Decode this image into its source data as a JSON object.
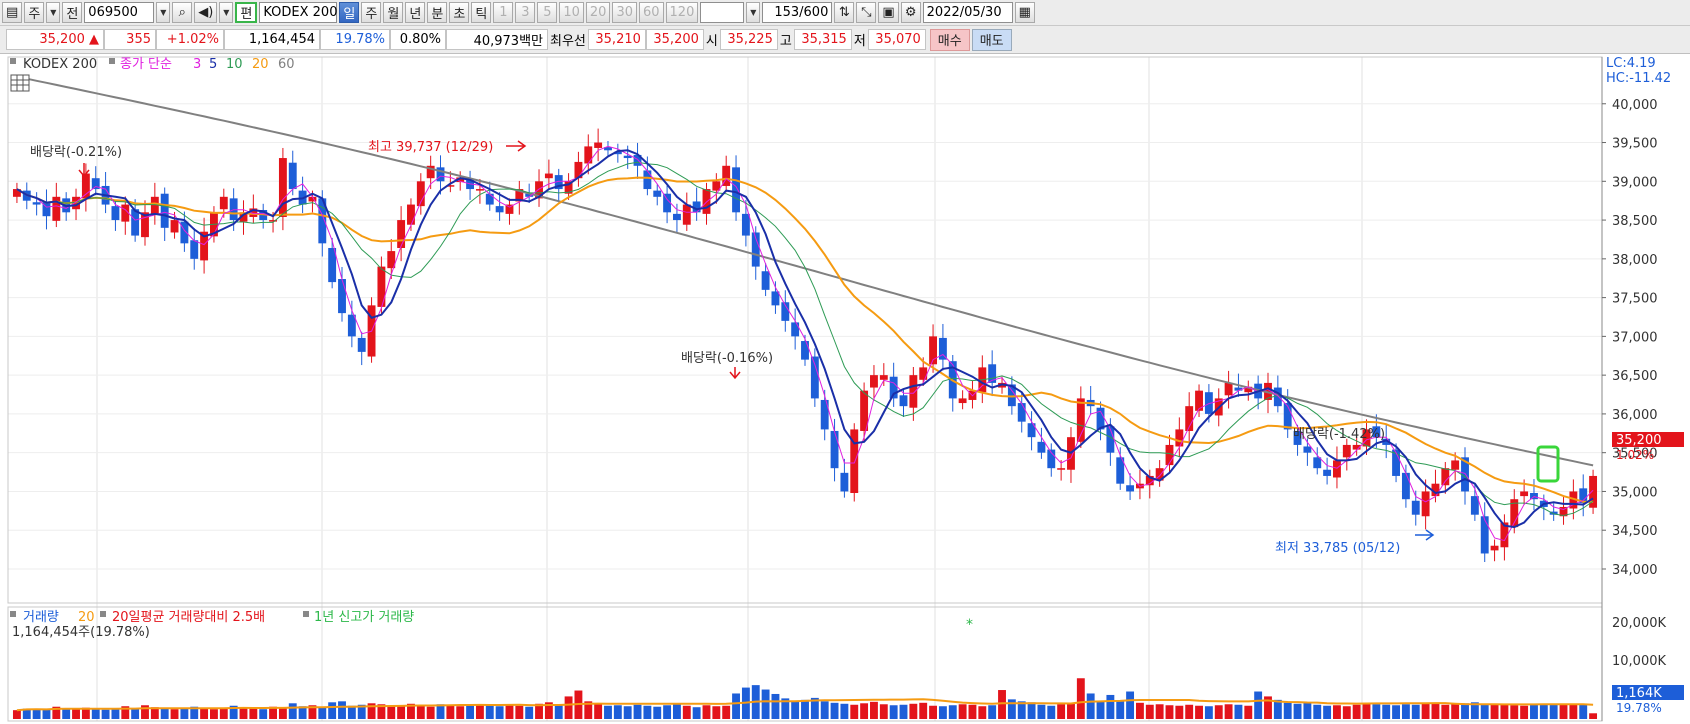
{
  "toolbar": {
    "period_label": "주",
    "compare_label": "전",
    "code_value": "069500",
    "edit_label": "편",
    "name_value": "KODEX 200",
    "periods": [
      "일",
      "주",
      "월",
      "년",
      "분",
      "초",
      "틱"
    ],
    "intervals": [
      "1",
      "3",
      "5",
      "10",
      "20",
      "30",
      "60",
      "120"
    ],
    "count_value": "153",
    "count_total": "/600",
    "date_value": "2022/05/30"
  },
  "quote": {
    "price": "35,200 ▲",
    "change": "355",
    "change_pct": "+1.02%",
    "volume": "1,164,454",
    "volume_ratio": "19.78%",
    "turnover_rate": "0.80%",
    "amount": "40,973백만",
    "best_label": "최우선",
    "best_ask": "35,210",
    "best_bid": "35,200",
    "open_label": "시",
    "open": "35,225",
    "high_label": "고",
    "high": "35,315",
    "low_label": "저",
    "low": "35,070",
    "buy_label": "매수",
    "sell_label": "매도"
  },
  "legend": {
    "name": "KODEX 200",
    "ma_title": "종가 단순",
    "ma3": "3",
    "ma5": "5",
    "ma10": "10",
    "ma20": "20",
    "ma60": "60",
    "lc": "LC:4.19",
    "hc": "HC:-11.42"
  },
  "annotations": {
    "div1": "배당락(-0.21%)",
    "high": "최고 39,737 (12/29)",
    "div2": "배당락(-0.16%)",
    "div3": "배당락(-1.42%)",
    "low": "최저 33,785 (05/12)"
  },
  "price_axis": {
    "ticks": [
      "40,000",
      "39,500",
      "39,000",
      "38,500",
      "38,000",
      "37,500",
      "37,000",
      "36,500",
      "36,000",
      "35,500",
      "35,000",
      "34,500",
      "34,000"
    ],
    "current_price": "35,200",
    "current_pct": "1.02%"
  },
  "volume_panel": {
    "title": "거래량",
    "ma": "20",
    "avg_label": "20일평균 거래량대비 2.5배",
    "newhigh_label": "1년 신고가 거래량",
    "current_volume": "1,164,454주(19.78%)",
    "ticks": [
      "20,000K",
      "10,000K"
    ],
    "current_tag": "1,164K",
    "current_pct": "19.78%",
    "marker": "*"
  },
  "colors": {
    "up": "#e3141b",
    "down": "#1d5ed8",
    "ma3": "#e020e0",
    "ma5": "#1a2fa8",
    "ma10": "#2e9b55",
    "ma20": "#f59b12",
    "ma60": "#808080",
    "highlight": "#39d63a"
  },
  "chart_data": {
    "type": "candlestick",
    "y_range": [
      33600,
      40500
    ],
    "volume_range_k": [
      0,
      22000
    ],
    "close_series": [
      38900,
      38750,
      38700,
      38550,
      38800,
      38600,
      38800,
      39100,
      38900,
      38700,
      38500,
      38700,
      38300,
      38600,
      38800,
      38400,
      38500,
      38200,
      38000,
      38350,
      38600,
      38800,
      38500,
      38600,
      38650,
      38500,
      38500,
      39300,
      38900,
      38700,
      38800,
      38200,
      37700,
      37300,
      37000,
      36800,
      37400,
      37900,
      38100,
      38500,
      38700,
      39000,
      39200,
      39000,
      38950,
      39050,
      38900,
      38900,
      38700,
      38600,
      38700,
      38900,
      38800,
      39000,
      39100,
      38900,
      39000,
      39250,
      39450,
      39500,
      39400,
      39350,
      39300,
      39200,
      38900,
      38800,
      38600,
      38500,
      38700,
      38600,
      38900,
      39000,
      39200,
      38600,
      38300,
      37900,
      37600,
      37400,
      37200,
      37000,
      36700,
      36200,
      35800,
      35300,
      35000,
      35800,
      36300,
      36500,
      36500,
      36200,
      36100,
      36500,
      36600,
      37000,
      36700,
      36200,
      36200,
      36300,
      36600,
      36400,
      36400,
      36100,
      35900,
      35700,
      35500,
      35300,
      35300,
      35700,
      36200,
      36100,
      35800,
      35500,
      35100,
      35000,
      35100,
      35200,
      35300,
      35600,
      35800,
      36100,
      36300,
      36000,
      36200,
      36400,
      36300,
      36350,
      36200,
      36400,
      36100,
      35800,
      35600,
      35500,
      35300,
      35200,
      35400,
      35600,
      35600,
      35800,
      35700,
      35600,
      35200,
      34900,
      34700,
      35000,
      35100,
      35300,
      35400,
      35000,
      34700,
      34200,
      34300,
      34600,
      34900,
      35000,
      34900,
      34800,
      34700,
      34800,
      35000,
      34850,
      35200
    ],
    "ma60_start": 40350,
    "ma60_end": 35370,
    "volume_k_series": [
      1800,
      2100,
      2000,
      1900,
      2500,
      2200,
      2000,
      2300,
      2100,
      1900,
      2000,
      2600,
      2200,
      2800,
      2400,
      2100,
      2000,
      2300,
      2500,
      2200,
      2000,
      2100,
      2700,
      2300,
      2200,
      2000,
      2500,
      2400,
      3200,
      2600,
      2800,
      2400,
      3400,
      3600,
      2700,
      2900,
      3200,
      3000,
      2600,
      2800,
      3100,
      2700,
      2500,
      3000,
      2900,
      2600,
      2700,
      2800,
      2900,
      2600,
      3000,
      2700,
      2500,
      3100,
      3400,
      3000,
      4600,
      5800,
      3600,
      3200,
      2700,
      2800,
      2600,
      2900,
      2700,
      2500,
      2800,
      3000,
      2700,
      2400,
      2800,
      2600,
      2700,
      5200,
      6400,
      6900,
      6000,
      5100,
      4200,
      3600,
      3900,
      4300,
      3600,
      3300,
      3100,
      2900,
      3200,
      3500,
      3000,
      2800,
      2900,
      3100,
      3300,
      2700,
      2600,
      2800,
      3000,
      2900,
      2600,
      2800,
      5900,
      4000,
      3600,
      3400,
      2900,
      2700,
      3000,
      3200,
      8300,
      5200,
      3600,
      4900,
      3600,
      5600,
      3300,
      2900,
      3000,
      2800,
      2700,
      2900,
      2700,
      2600,
      2800,
      3000,
      2900,
      2700,
      5600,
      4600,
      3900,
      3300,
      3100,
      3400,
      2900,
      2700,
      2800,
      2600,
      2900,
      3100,
      3000,
      2900,
      2800,
      3000,
      2900,
      3100,
      3300,
      2900,
      3000,
      3200,
      3400,
      3100,
      3000,
      2900,
      2800,
      2700,
      2900,
      3000,
      2900,
      3100,
      3000,
      2900,
      1164
    ]
  }
}
